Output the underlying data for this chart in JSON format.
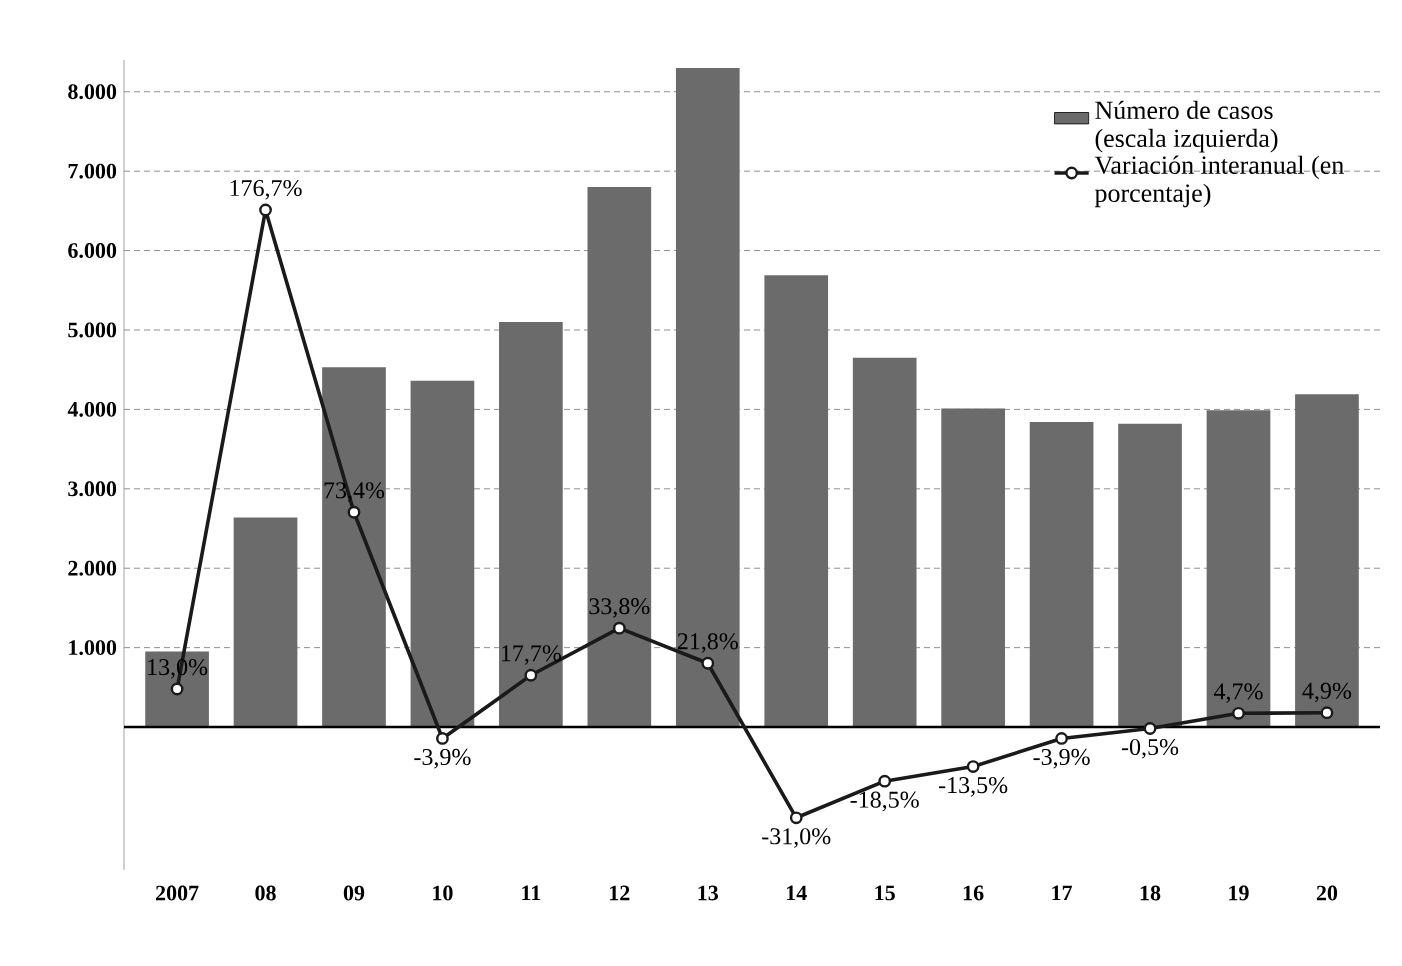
{
  "chart_data": {
    "type": "bar",
    "categories": [
      "2007",
      "08",
      "09",
      "10",
      "11",
      "12",
      "13",
      "14",
      "15",
      "16",
      "17",
      "18",
      "19",
      "20"
    ],
    "series": [
      {
        "name": "Número de casos (escala izquierda)",
        "color": "#6b6b6b",
        "values": [
          950,
          2640,
          4530,
          4360,
          5100,
          6800,
          8300,
          5690,
          4650,
          4010,
          3840,
          3820,
          3990,
          4190
        ]
      },
      {
        "name": "Variación interanual (en porcentaje)",
        "type": "line",
        "axis": "y2",
        "color": "#1a1a1a",
        "marker": "circle",
        "values": [
          13.0,
          176.7,
          73.4,
          -3.9,
          17.7,
          33.8,
          21.8,
          -31.0,
          -18.5,
          -13.5,
          -3.9,
          -0.5,
          4.7,
          4.9
        ],
        "value_labels": [
          "13,0%",
          "176,7%",
          "73,4%",
          "-3,9%",
          "17,7%",
          "33,8%",
          "21,8%",
          "-31,0%",
          "-18,5%",
          "-13,5%",
          "-3,9%",
          "-0,5%",
          "4,7%",
          "4,9%"
        ]
      }
    ],
    "ylim": [
      -1800,
      8400
    ],
    "yticks": [
      {
        "value": 1000,
        "label": "1.000"
      },
      {
        "value": 2000,
        "label": "2.000"
      },
      {
        "value": 3000,
        "label": "3.000"
      },
      {
        "value": 4000,
        "label": "4.000"
      },
      {
        "value": 5000,
        "label": "5.000"
      },
      {
        "value": 6000,
        "label": "6.000"
      },
      {
        "value": 7000,
        "label": "7.000"
      },
      {
        "value": 8000,
        "label": "8.000"
      }
    ],
    "grid": "y",
    "legend": "top right"
  }
}
